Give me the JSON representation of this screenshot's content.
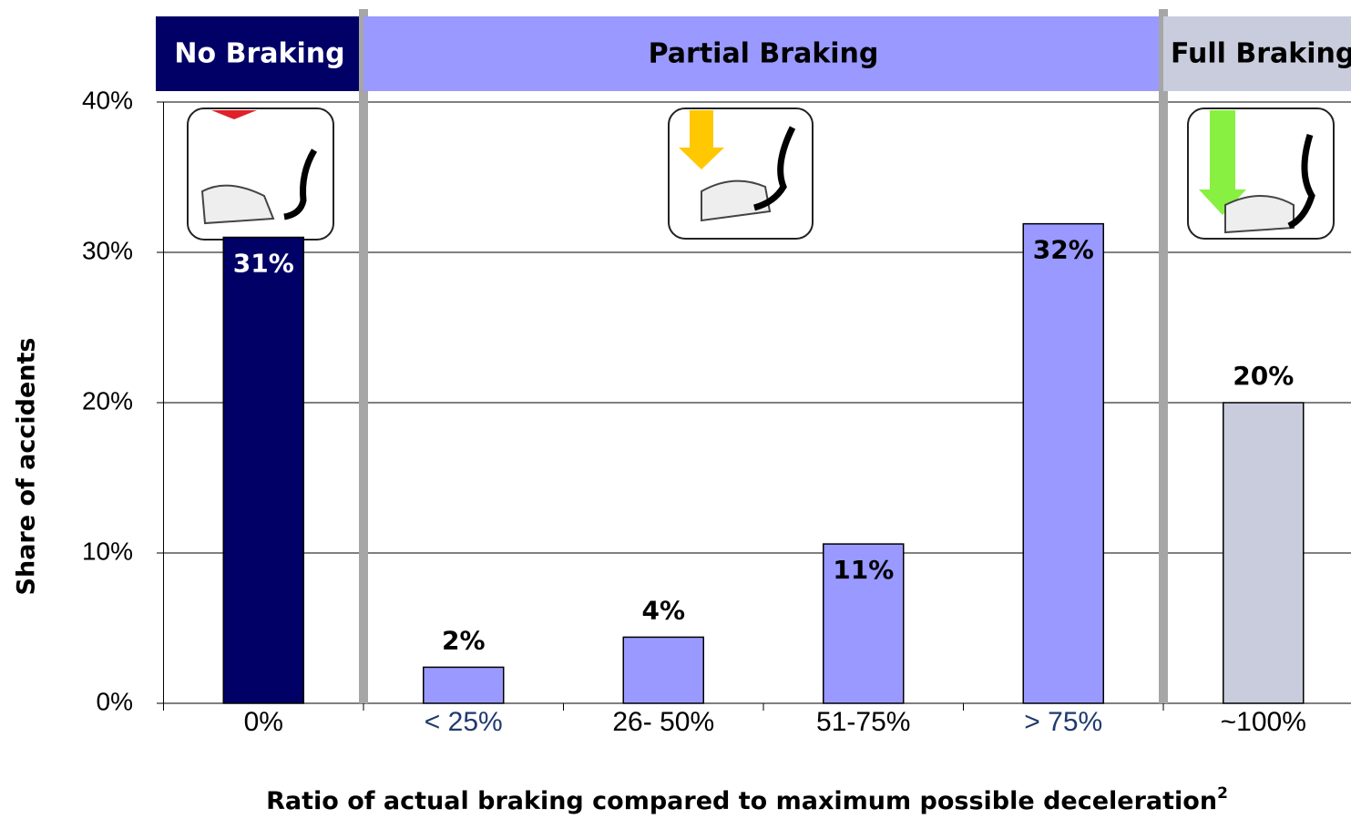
{
  "chart_data": {
    "type": "bar",
    "y_label": "Share of accidents",
    "x_label": "Ratio of actual braking compared to maximum possible deceleration",
    "x_label_note": "2",
    "categories": [
      "0%",
      "< 25%",
      "26- 50%",
      "51-75%",
      "> 75%",
      "~100%"
    ],
    "category_colors": [
      "#000000",
      "#1f3a6e",
      "#000000",
      "#000000",
      "#1f3a6e",
      "#000000"
    ],
    "values": [
      31,
      2.4,
      4.4,
      10.6,
      31.9,
      20
    ],
    "value_labels": [
      "31%",
      "2%",
      "4%",
      "11%",
      "32%",
      "20%"
    ],
    "colors": [
      "#000066",
      "#9999ff",
      "#9999ff",
      "#9999ff",
      "#9999ff",
      "#c8ccdc"
    ],
    "label_colors": [
      "#ffffff",
      "#000000",
      "#000000",
      "#000000",
      "#000000",
      "#000000"
    ],
    "label_inside": [
      true,
      false,
      false,
      true,
      true,
      false
    ],
    "groups": [
      {
        "name": "No Braking",
        "categories": 1,
        "color": "#000066",
        "text_color": "#ffffff"
      },
      {
        "name": "Partial Braking",
        "categories": 4,
        "color": "#9999ff",
        "text_color": "#000000"
      },
      {
        "name": "Full Braking",
        "categories": 1,
        "color": "#c8ccdc",
        "text_color": "#000000"
      }
    ],
    "ylim": [
      0,
      40
    ],
    "yticks": [
      {
        "value": 0,
        "label": "0%"
      },
      {
        "value": 10,
        "label": "10%"
      },
      {
        "value": 20,
        "label": "20%"
      },
      {
        "value": 30,
        "label": "30%"
      },
      {
        "value": 40,
        "label": "40%"
      }
    ],
    "grid": true
  }
}
